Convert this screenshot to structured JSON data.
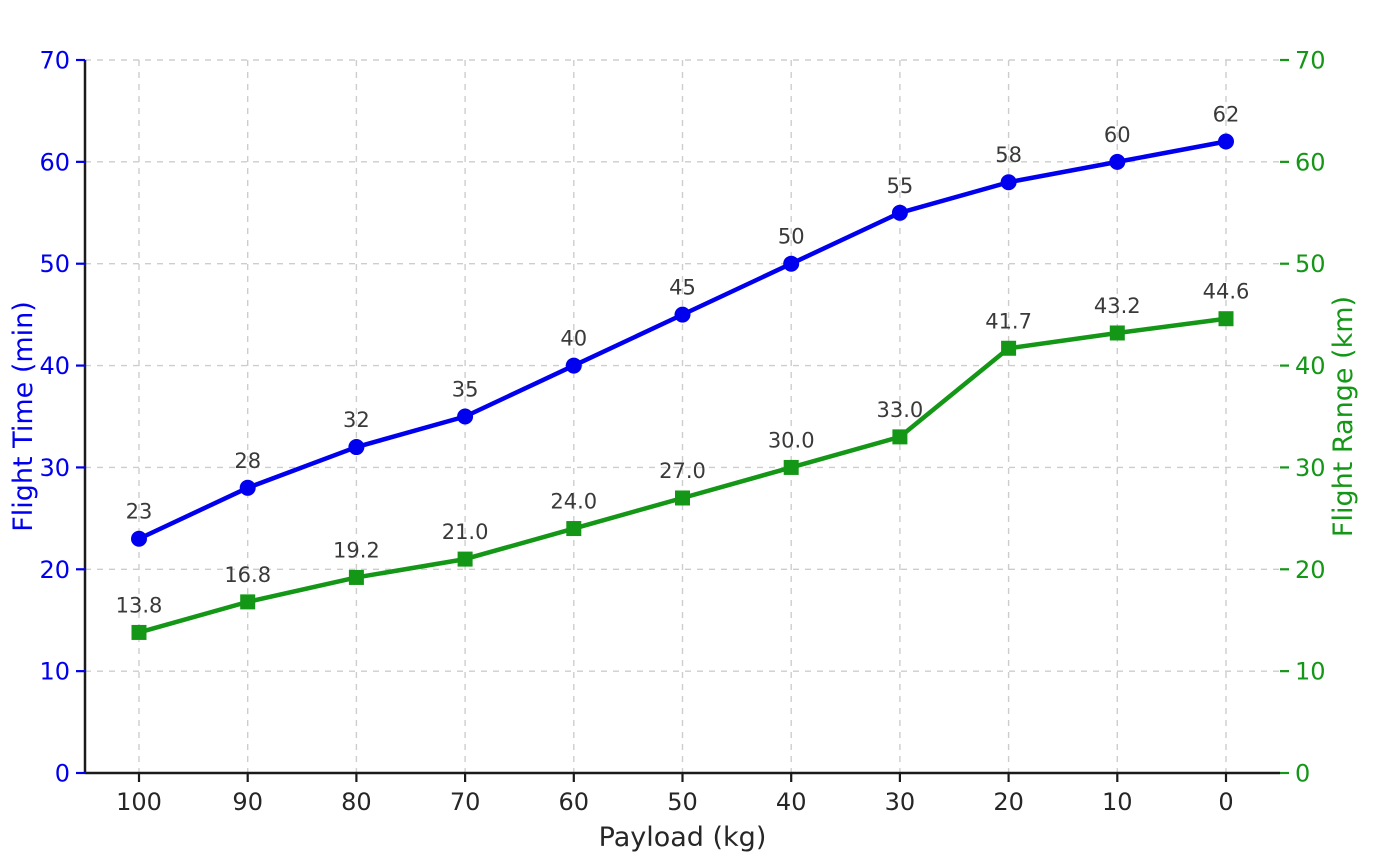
{
  "chart_data": {
    "type": "line",
    "title": "",
    "xlabel": "Payload (kg)",
    "x_tick_labels": [
      "100",
      "90",
      "80",
      "70",
      "60",
      "50",
      "40",
      "30",
      "20",
      "10",
      "0"
    ],
    "y_left": {
      "label": "Flight Time (min)",
      "ticks": [
        "0",
        "10",
        "20",
        "30",
        "40",
        "50",
        "60",
        "70"
      ],
      "tick_values": [
        0,
        10,
        20,
        30,
        40,
        50,
        60,
        70
      ],
      "min": 0,
      "max": 70,
      "color": "#0000ee"
    },
    "y_right": {
      "label": "Flight Range (km)",
      "ticks": [
        "0",
        "10",
        "20",
        "30",
        "40",
        "50",
        "60",
        "70"
      ],
      "tick_values": [
        0,
        10,
        20,
        30,
        40,
        50,
        60,
        70
      ],
      "min": 0,
      "max": 70,
      "color": "#149616"
    },
    "grid": true,
    "legend": "none",
    "series": [
      {
        "name": "Flight Time (min)",
        "axis": "left",
        "marker": "circle",
        "color": "#0000ee",
        "values": [
          23,
          28,
          32,
          35,
          40,
          45,
          50,
          55,
          58,
          60,
          62
        ],
        "labels": [
          "23",
          "28",
          "32",
          "35",
          "40",
          "45",
          "50",
          "55",
          "58",
          "60",
          "62"
        ]
      },
      {
        "name": "Flight Range (km)",
        "axis": "right",
        "marker": "square",
        "color": "#149616",
        "values": [
          13.8,
          16.8,
          19.2,
          21.0,
          24.0,
          27.0,
          30.0,
          33.0,
          41.7,
          43.2,
          44.6
        ],
        "labels": [
          "13.8",
          "16.8",
          "19.2",
          "21.0",
          "24.0",
          "27.0",
          "30.0",
          "33.0",
          "41.7",
          "43.2",
          "44.6"
        ]
      }
    ],
    "colors": {
      "grid": "#cdcdcd",
      "spine": "#1a1a1a",
      "x_tick_text": "#262626",
      "annotation_text": "#3a3a3a",
      "background": "#ffffff"
    }
  }
}
